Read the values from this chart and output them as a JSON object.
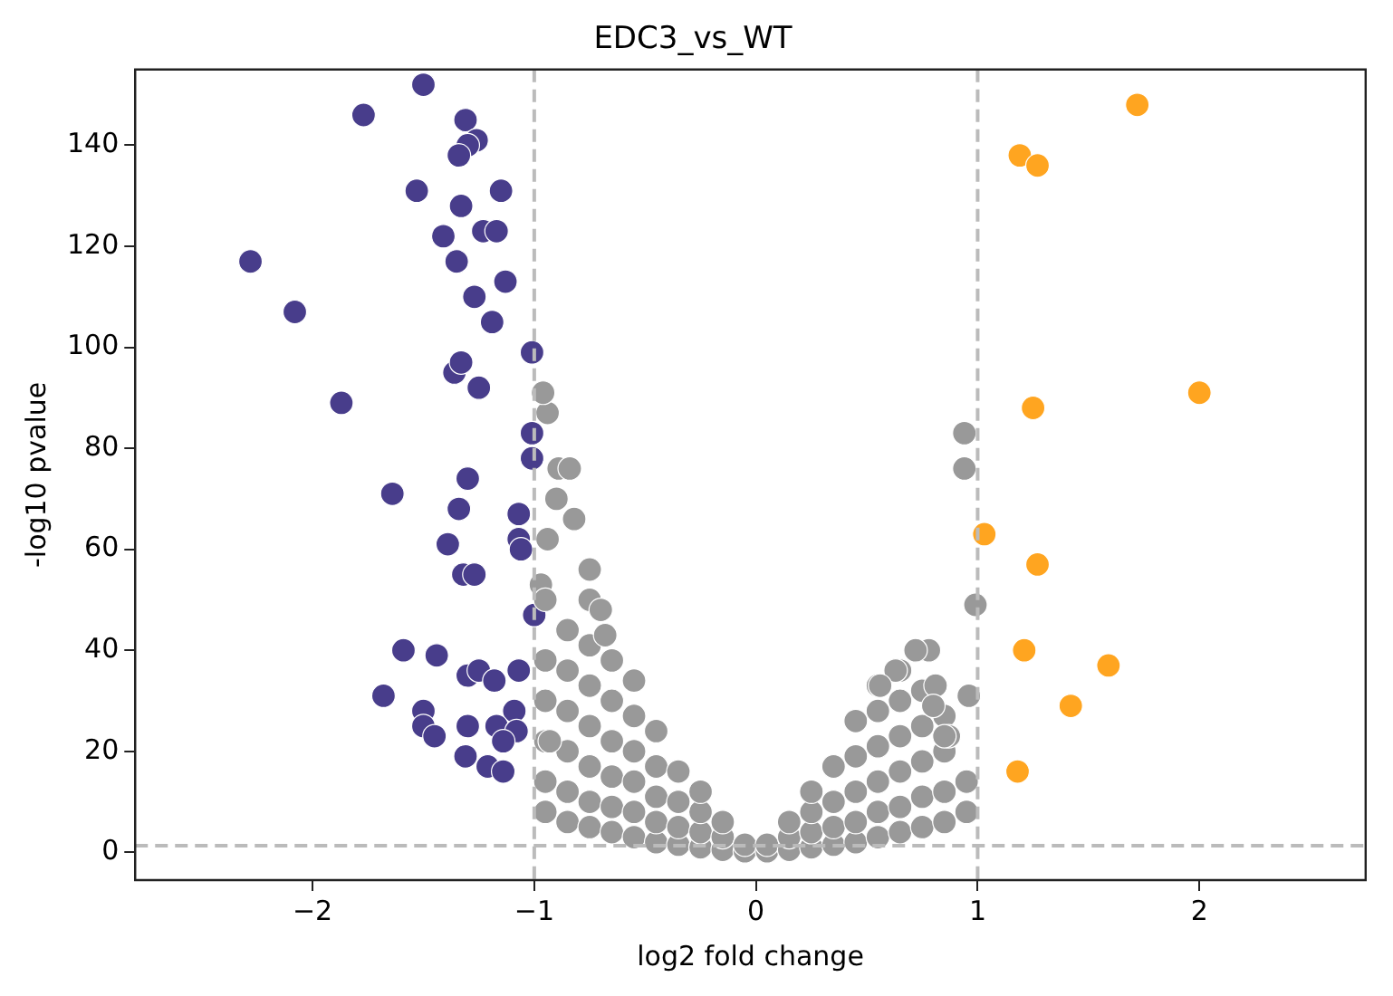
{
  "chart_data": {
    "type": "scatter",
    "title": "EDC3_vs_WT",
    "xlabel": "log2 fold change",
    "ylabel": "-log10 pvalue",
    "xlim": [
      -2.8,
      2.75
    ],
    "ylim": [
      -5.5,
      155
    ],
    "xticks": [
      {
        "value": -2,
        "label": "−2"
      },
      {
        "value": -1,
        "label": "−1"
      },
      0,
      1,
      2
    ],
    "yticks": [
      0,
      20,
      40,
      60,
      80,
      100,
      120,
      140
    ],
    "grid": false,
    "legend": false,
    "marker": "circle",
    "ref_lines": [
      {
        "axis": "x",
        "value": -1,
        "color": "#bbbbbb",
        "line_style": "dashed"
      },
      {
        "axis": "x",
        "value": 1,
        "color": "#bbbbbb",
        "line_style": "dashed"
      },
      {
        "axis": "y",
        "value": 1.3,
        "color": "#bbbbbb",
        "line_style": "dashed"
      }
    ],
    "series": [
      {
        "color": "#999999",
        "x": [
          -0.95,
          -0.95,
          -0.95,
          -0.95,
          -0.95,
          -0.85,
          -0.85,
          -0.85,
          -0.85,
          -0.85,
          -0.85,
          -0.75,
          -0.75,
          -0.75,
          -0.75,
          -0.75,
          -0.75,
          -0.75,
          -0.65,
          -0.65,
          -0.65,
          -0.65,
          -0.65,
          -0.65,
          -0.55,
          -0.55,
          -0.55,
          -0.55,
          -0.55,
          -0.55,
          -0.45,
          -0.45,
          -0.45,
          -0.45,
          -0.45,
          -0.35,
          -0.35,
          -0.35,
          -0.35,
          -0.25,
          -0.25,
          -0.25,
          -0.25,
          -0.15,
          -0.15,
          -0.15,
          -0.05,
          -0.05,
          0.05,
          0.05,
          0.15,
          0.15,
          0.15,
          0.25,
          0.25,
          0.25,
          0.25,
          0.35,
          0.35,
          0.35,
          0.35,
          0.45,
          0.45,
          0.45,
          0.45,
          0.45,
          0.55,
          0.55,
          0.55,
          0.55,
          0.55,
          0.55,
          0.65,
          0.65,
          0.65,
          0.65,
          0.65,
          0.65,
          0.75,
          0.75,
          0.75,
          0.75,
          0.75,
          0.85,
          0.85,
          0.85,
          0.85,
          0.95,
          0.95,
          -0.94,
          -0.96,
          -0.89,
          -0.84,
          -0.9,
          -0.82,
          -0.75,
          -0.94,
          -0.97,
          -0.7,
          -0.68,
          -0.93,
          -0.95,
          0.94,
          0.94,
          0.99,
          0.96,
          0.87,
          0.78,
          0.72,
          0.63,
          0.56,
          0.81,
          0.8,
          0.85
        ],
        "values": [
          8,
          14,
          22,
          30,
          38,
          6,
          12,
          20,
          28,
          36,
          44,
          5,
          10,
          17,
          25,
          33,
          41,
          50,
          4,
          9,
          15,
          22,
          30,
          38,
          3,
          8,
          14,
          20,
          27,
          34,
          2,
          6,
          11,
          17,
          24,
          1.5,
          5,
          10,
          16,
          1,
          4,
          8,
          12,
          0.5,
          3,
          6,
          0.2,
          1.5,
          0.2,
          1.5,
          0.5,
          3,
          6,
          1,
          4,
          8,
          12,
          1.5,
          5,
          10,
          17,
          2,
          6,
          12,
          19,
          26,
          3,
          8,
          14,
          21,
          28,
          33,
          4,
          9,
          16,
          23,
          30,
          36,
          5,
          11,
          18,
          25,
          32,
          6,
          12,
          20,
          27,
          8,
          14,
          87,
          91,
          76,
          76,
          70,
          66,
          56,
          62,
          53,
          48,
          43,
          22,
          50,
          83,
          76,
          49,
          31,
          23,
          40,
          40,
          36,
          33,
          33,
          29,
          23
        ]
      },
      {
        "color": "#483d8b",
        "x": [
          -1.5,
          -1.77,
          -1.31,
          -1.26,
          -1.3,
          -1.34,
          -1.53,
          -1.15,
          -1.33,
          -1.41,
          -1.23,
          -1.17,
          -1.35,
          -2.28,
          -1.13,
          -1.27,
          -2.08,
          -1.19,
          -1.01,
          -1.36,
          -1.33,
          -1.25,
          -1.87,
          -1.01,
          -1.01,
          -1.3,
          -1.64,
          -1.34,
          -1.07,
          -1.39,
          -1.07,
          -1.06,
          -1.32,
          -1.27,
          -1,
          -1.59,
          -1.44,
          -1.3,
          -1.25,
          -1.18,
          -1.07,
          -1.68,
          -1.5,
          -1.09,
          -1.5,
          -1.45,
          -1.3,
          -1.17,
          -1.08,
          -1.14,
          -1.31,
          -1.21,
          -1.14
        ],
        "values": [
          152,
          146,
          145,
          141,
          140,
          138,
          131,
          131,
          128,
          122,
          123,
          123,
          117,
          117,
          113,
          110,
          107,
          105,
          99,
          95,
          97,
          92,
          89,
          83,
          78,
          74,
          71,
          68,
          67,
          61,
          62,
          60,
          55,
          55,
          47,
          40,
          39,
          35,
          36,
          34,
          36,
          31,
          28,
          28,
          25,
          23,
          25,
          25,
          24,
          22,
          19,
          17,
          16
        ]
      },
      {
        "color": "#ffa520",
        "x": [
          1.72,
          1.19,
          1.27,
          1.25,
          2,
          1.03,
          1.27,
          1.21,
          1.59,
          1.42,
          1.18
        ],
        "values": [
          148,
          138,
          136,
          88,
          91,
          63,
          57,
          40,
          37,
          29,
          16
        ]
      }
    ]
  }
}
